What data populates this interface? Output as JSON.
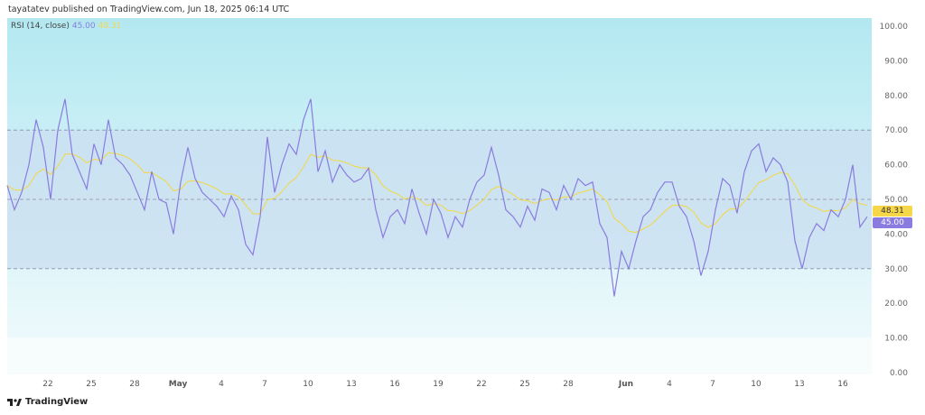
{
  "header": {
    "text": "tayatatev published on TradingView.com, Jun 18, 2025 06:14 UTC"
  },
  "legend": {
    "name": "RSI (14, close)",
    "rsi_value": "45.00",
    "ma_value": "48.31"
  },
  "brand": {
    "name": "TradingView"
  },
  "colors": {
    "rsi": "#8a7be0",
    "ma": "#f0d850",
    "band": "#cfe1f2",
    "top_bg": "#b6e9f1"
  },
  "chart_data": {
    "type": "line",
    "ylim": [
      0,
      100
    ],
    "y_ticks": [
      "100.00",
      "90.00",
      "80.00",
      "70.00",
      "60.00",
      "50.00",
      "40.00",
      "30.00",
      "20.00",
      "10.00",
      "0.00"
    ],
    "bands": {
      "upper": 70,
      "middle": 50,
      "lower": 30
    },
    "x_ticks": [
      "22",
      "25",
      "28",
      "May",
      "4",
      "7",
      "10",
      "13",
      "16",
      "19",
      "22",
      "25",
      "28",
      "Jun",
      "4",
      "7",
      "10",
      "13",
      "16"
    ],
    "series": [
      {
        "name": "RSI",
        "values": [
          54,
          47,
          52,
          60,
          73,
          65,
          50,
          70,
          79,
          63,
          58,
          53,
          66,
          60,
          73,
          62,
          60,
          57,
          52,
          47,
          58,
          50,
          49,
          40,
          55,
          65,
          56,
          52,
          50,
          48,
          45,
          51,
          47,
          37,
          34,
          45,
          68,
          52,
          60,
          66,
          63,
          73,
          79,
          58,
          64,
          55,
          60,
          57,
          55,
          56,
          59,
          47,
          39,
          45,
          47,
          43,
          53,
          46,
          40,
          50,
          46,
          39,
          45,
          42,
          50,
          55,
          57,
          65,
          57,
          47,
          45,
          42,
          48,
          44,
          53,
          52,
          47,
          54,
          50,
          56,
          54,
          55,
          43,
          39,
          22,
          35,
          30,
          38,
          45,
          47,
          52,
          55,
          55,
          48,
          45,
          38,
          28,
          35,
          47,
          56,
          54,
          46,
          58,
          64,
          66,
          58,
          62,
          60,
          55,
          38,
          30,
          39,
          43,
          41,
          47,
          45,
          50,
          60,
          42,
          45
        ]
      }
    ],
    "last_values": {
      "rsi": "45.00",
      "ma": "48.31"
    }
  }
}
